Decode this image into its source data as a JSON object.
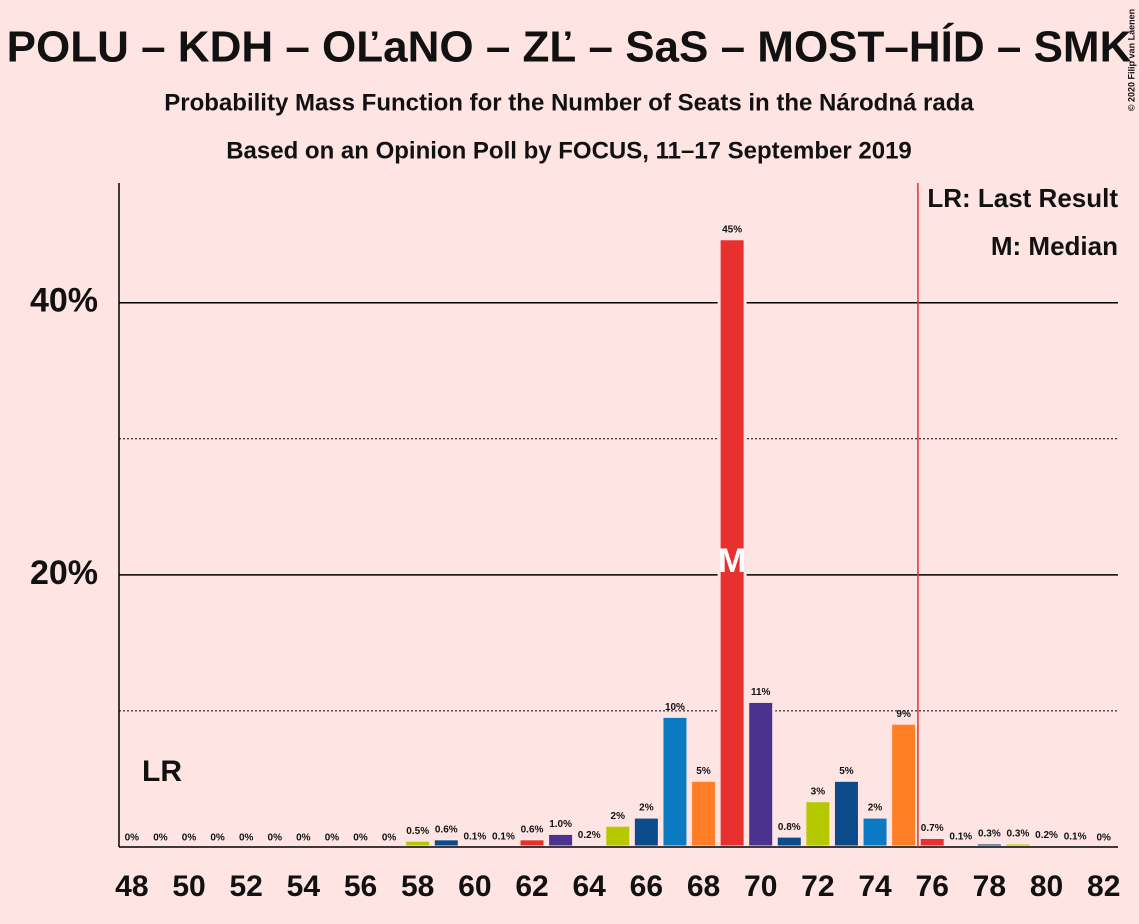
{
  "chart_data": {
    "type": "bar",
    "title": "POLU – KDH – OĽaNO – ZĽ – SaS – MOST–HÍD – SMK",
    "subtitle": "Probability Mass Function for the Number of Seats in the Národná rada",
    "subtitle2": "Based on an Opinion Poll by FOCUS, 11–17 September 2019",
    "copyright": "© 2020 Filip van Laenen",
    "x": [
      48,
      49,
      50,
      51,
      52,
      53,
      54,
      55,
      56,
      57,
      58,
      59,
      60,
      61,
      62,
      63,
      64,
      65,
      66,
      67,
      68,
      69,
      70,
      71,
      72,
      73,
      74,
      75,
      76,
      77,
      78,
      79,
      80,
      81,
      82
    ],
    "values": [
      0,
      0,
      0,
      0,
      0,
      0,
      0,
      0,
      0,
      0,
      0.5,
      0.6,
      0.1,
      0.1,
      0.6,
      1.0,
      0.2,
      1.6,
      2.2,
      9.6,
      4.9,
      44.7,
      10.7,
      0.8,
      3.4,
      4.9,
      2.2,
      9.1,
      0.7,
      0.1,
      0.3,
      0.3,
      0.2,
      0.1,
      0
    ],
    "value_labels": [
      "0%",
      "0%",
      "0%",
      "0%",
      "0%",
      "0%",
      "0%",
      "0%",
      "0%",
      "0%",
      "0.5%",
      "0.6%",
      "0.1%",
      "0.1%",
      "0.6%",
      "1.0%",
      "0.2%",
      "2%",
      "2%",
      "10%",
      "5%",
      "45%",
      "11%",
      "0.8%",
      "3%",
      "5%",
      "2%",
      "9%",
      "0.7%",
      "0.1%",
      "0.3%",
      "0.3%",
      "0.2%",
      "0.1%",
      "0%"
    ],
    "colors": [
      "#0a7bc3",
      "#ff7f27",
      "#e8302e",
      "#4b3190",
      "#1b4f8c",
      "#b5c800",
      "#1b4f8c",
      "#0a7bc3",
      "#ff7f27",
      "#e8302e",
      "#b5c800",
      "#0b4a8b",
      "#0a7bc3",
      "#ff7f27",
      "#e8302e",
      "#4b3190",
      "#0b4a8b",
      "#b5c800",
      "#0b4a8b",
      "#0a7bc3",
      "#ff7f27",
      "#e8302e",
      "#4b3190",
      "#0b4a8b",
      "#b5c800",
      "#0b4a8b",
      "#0a7bc3",
      "#ff7f27",
      "#e8302e",
      "#4b3190",
      "#0b4a8b",
      "#b5c800",
      "#0b4a8b",
      "#0a7bc3",
      "#ff7f27"
    ],
    "xlim": [
      47.55,
      82.5
    ],
    "xticks": [
      48,
      50,
      52,
      54,
      56,
      58,
      60,
      62,
      64,
      66,
      68,
      70,
      72,
      74,
      76,
      78,
      80,
      82
    ],
    "ylim": [
      0,
      48.8
    ],
    "yticks": [
      {
        "value": 20,
        "label": "20%"
      },
      {
        "value": 40,
        "label": "40%"
      }
    ],
    "minor_yticks": [
      10,
      30
    ],
    "grid": true,
    "last_result": 75.5,
    "last_result_label": "LR",
    "median": 69,
    "median_label": "M",
    "legend": [
      "LR: Last Result",
      "M: Median"
    ]
  }
}
